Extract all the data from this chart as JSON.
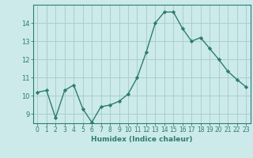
{
  "x": [
    0,
    1,
    2,
    3,
    4,
    5,
    6,
    7,
    8,
    9,
    10,
    11,
    12,
    13,
    14,
    15,
    16,
    17,
    18,
    19,
    20,
    21,
    22,
    23
  ],
  "y": [
    10.2,
    10.3,
    8.8,
    10.3,
    10.6,
    9.3,
    8.55,
    9.4,
    9.5,
    9.7,
    10.1,
    11.0,
    12.4,
    14.0,
    14.6,
    14.6,
    13.7,
    13.0,
    13.2,
    12.6,
    12.0,
    11.35,
    10.9,
    10.5
  ],
  "xlabel": "Humidex (Indice chaleur)",
  "ylim": [
    8.5,
    15.0
  ],
  "xlim": [
    -0.5,
    23.5
  ],
  "line_color": "#2d7d6e",
  "marker": "D",
  "marker_size": 2.2,
  "bg_color": "#cceaea",
  "grid_color": "#aacece",
  "yticks": [
    9,
    10,
    11,
    12,
    13,
    14
  ],
  "xticks": [
    0,
    1,
    2,
    3,
    4,
    5,
    6,
    7,
    8,
    9,
    10,
    11,
    12,
    13,
    14,
    15,
    16,
    17,
    18,
    19,
    20,
    21,
    22,
    23
  ],
  "tick_fontsize": 5.5,
  "xlabel_fontsize": 6.5
}
